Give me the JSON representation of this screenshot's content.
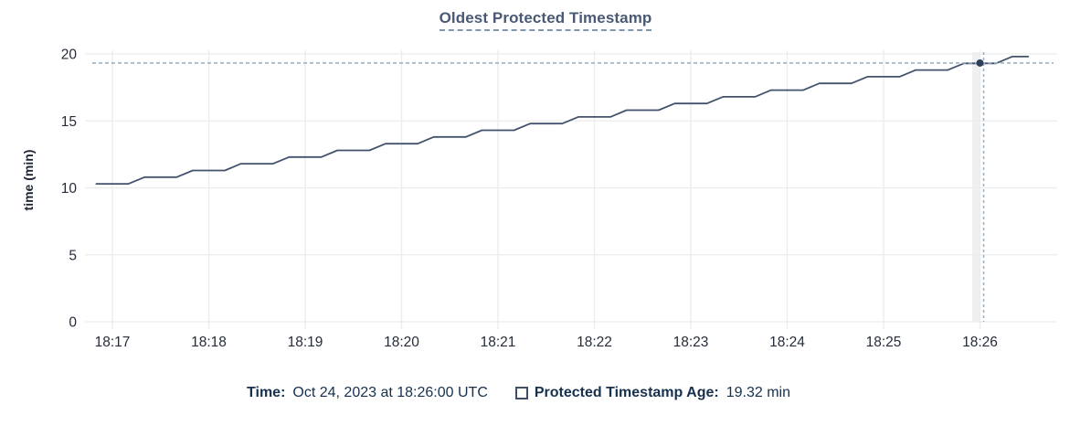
{
  "chart": {
    "title": "Oldest Protected Timestamp",
    "ylabel": "time (min)"
  },
  "tooltip": {
    "time_label": "Time:",
    "time_value": "Oct 24, 2023 at 18:26:00 UTC",
    "series_label": "Protected Timestamp Age:",
    "series_value": "19.32 min"
  },
  "chart_data": {
    "type": "line",
    "title": "Oldest Protected Timestamp",
    "xlabel": "",
    "ylabel": "time (min)",
    "ylim": [
      0,
      20
    ],
    "yticks": [
      0,
      5,
      10,
      15,
      20
    ],
    "xtick_labels": [
      "18:17",
      "18:18",
      "18:19",
      "18:20",
      "18:21",
      "18:22",
      "18:23",
      "18:24",
      "18:25",
      "18:26"
    ],
    "x_unit": "seconds after 18:17:00",
    "grid": true,
    "legend_position": "bottom",
    "series": [
      {
        "name": "Protected Timestamp Age",
        "points": [
          [
            -10,
            10.3
          ],
          [
            0,
            10.3
          ],
          [
            10,
            10.3
          ],
          [
            20,
            10.8
          ],
          [
            30,
            10.8
          ],
          [
            40,
            10.8
          ],
          [
            50,
            11.3
          ],
          [
            60,
            11.3
          ],
          [
            70,
            11.3
          ],
          [
            80,
            11.8
          ],
          [
            90,
            11.8
          ],
          [
            100,
            11.8
          ],
          [
            110,
            12.3
          ],
          [
            120,
            12.3
          ],
          [
            130,
            12.3
          ],
          [
            140,
            12.8
          ],
          [
            150,
            12.8
          ],
          [
            160,
            12.8
          ],
          [
            170,
            13.3
          ],
          [
            180,
            13.3
          ],
          [
            190,
            13.3
          ],
          [
            200,
            13.8
          ],
          [
            210,
            13.8
          ],
          [
            220,
            13.8
          ],
          [
            230,
            14.3
          ],
          [
            240,
            14.3
          ],
          [
            250,
            14.3
          ],
          [
            260,
            14.8
          ],
          [
            270,
            14.8
          ],
          [
            280,
            14.8
          ],
          [
            290,
            15.3
          ],
          [
            300,
            15.3
          ],
          [
            310,
            15.3
          ],
          [
            320,
            15.8
          ],
          [
            330,
            15.8
          ],
          [
            340,
            15.8
          ],
          [
            350,
            16.3
          ],
          [
            360,
            16.3
          ],
          [
            370,
            16.3
          ],
          [
            380,
            16.8
          ],
          [
            390,
            16.8
          ],
          [
            400,
            16.8
          ],
          [
            410,
            17.3
          ],
          [
            420,
            17.3
          ],
          [
            430,
            17.3
          ],
          [
            440,
            17.8
          ],
          [
            450,
            17.8
          ],
          [
            460,
            17.8
          ],
          [
            470,
            18.3
          ],
          [
            480,
            18.3
          ],
          [
            490,
            18.3
          ],
          [
            500,
            18.8
          ],
          [
            510,
            18.8
          ],
          [
            520,
            18.8
          ],
          [
            530,
            19.3
          ],
          [
            540,
            19.3
          ],
          [
            550,
            19.3
          ],
          [
            560,
            19.8
          ],
          [
            570,
            19.8
          ]
        ]
      }
    ],
    "highlight_point": {
      "time": "18:26:00",
      "t_sec": 540,
      "value_min": 19.32
    },
    "crosshair": {
      "x_time": "18:26:00",
      "y_value_min": 19.32
    },
    "colors": {
      "line": "#43526d",
      "dot": "#2e3f5c",
      "crosshair": "#9db2c0",
      "grid": "#ececec",
      "hover_band": "#f0f0f0",
      "title": "#4a5a74",
      "legend_text": "#16304d",
      "axis_text": "#262c39"
    }
  }
}
